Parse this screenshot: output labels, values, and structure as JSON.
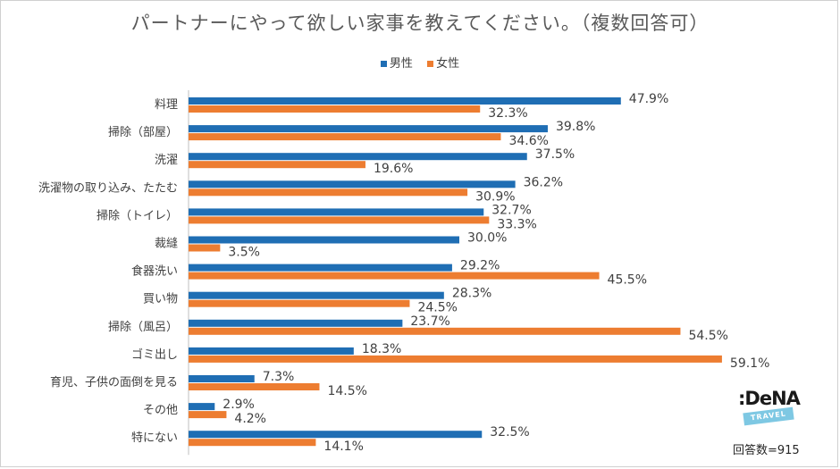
{
  "chart_data": {
    "type": "bar",
    "orientation": "horizontal",
    "title": "パートナーにやって欲しい家事を教えてください。（複数回答可）",
    "categories": [
      "料理",
      "掃除（部屋）",
      "洗濯",
      "洗濯物の取り込み、たたむ",
      "掃除（トイレ）",
      "裁縫",
      "食器洗い",
      "買い物",
      "掃除（風呂）",
      "ゴミ出し",
      "育児、子供の面倒を見る",
      "その他",
      "特にない"
    ],
    "series": [
      {
        "name": "男性",
        "color": "#1f6eb4",
        "values": [
          47.9,
          39.8,
          37.5,
          36.2,
          32.7,
          30.0,
          29.2,
          28.3,
          23.7,
          18.3,
          7.3,
          2.9,
          32.5
        ],
        "labels": [
          "47.9%",
          "39.8%",
          "37.5%",
          "36.2%",
          "32.7%",
          "30.0%",
          "29.2%",
          "28.3%",
          "23.7%",
          "18.3%",
          "7.3%",
          "2.9%",
          "32.5%"
        ]
      },
      {
        "name": "女性",
        "color": "#ed7d31",
        "values": [
          32.3,
          34.6,
          19.6,
          30.9,
          33.3,
          3.5,
          45.5,
          24.5,
          54.5,
          59.1,
          14.5,
          4.2,
          14.1
        ],
        "labels": [
          "32.3%",
          "34.6%",
          "19.6%",
          "30.9%",
          "33.3%",
          "3.5%",
          "45.5%",
          "24.5%",
          "54.5%",
          "59.1%",
          "14.5%",
          "4.2%",
          "14.1%"
        ]
      }
    ],
    "xlim": [
      0,
      70
    ],
    "grid": false,
    "legend_position": "top"
  },
  "logo": {
    "main": ":DeNA",
    "badge": "TRAVEL"
  },
  "footnote": "回答数=915"
}
